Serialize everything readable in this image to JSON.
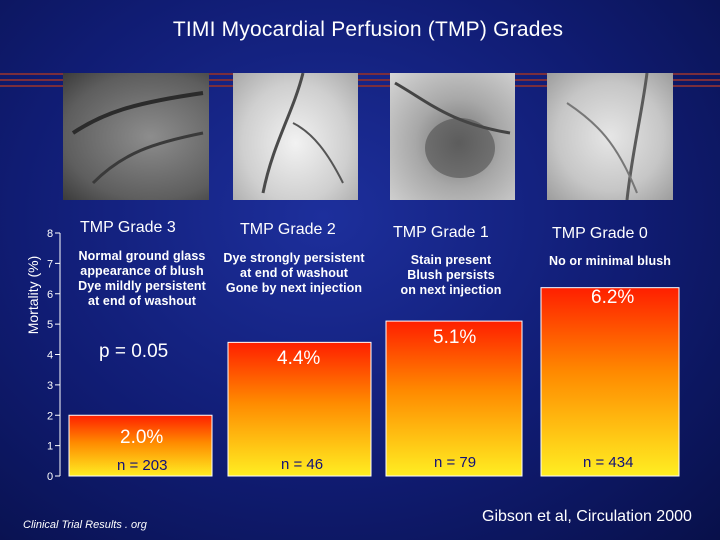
{
  "title": "TIMI Myocardial Perfusion (TMP) Grades",
  "footer_left": "Clinical Trial Results . org",
  "footer_right": "Gibson et al, Circulation 2000",
  "p_value_text": "p = 0.05",
  "grades": [
    {
      "label": "TMP Grade 3",
      "description": [
        "Normal ground glass",
        "appearance of blush",
        "Dye mildly persistent",
        "at end of washout"
      ],
      "value_label": "2.0%",
      "n_label": "n = 203"
    },
    {
      "label": "TMP Grade 2",
      "description": [
        "Dye strongly persistent",
        "at end of washout",
        "Gone by next injection"
      ],
      "value_label": "4.4%",
      "n_label": "n = 46"
    },
    {
      "label": "TMP Grade 1",
      "description": [
        "Stain present",
        "Blush persists",
        "on next injection"
      ],
      "value_label": "5.1%",
      "n_label": "n =  79"
    },
    {
      "label": "TMP Grade 0",
      "description": [
        "No or minimal blush"
      ],
      "value_label": "6.2%",
      "n_label": "n =  434"
    }
  ],
  "chart_data": {
    "type": "bar",
    "categories": [
      "TMP Grade 3",
      "TMP Grade 2",
      "TMP Grade 1",
      "TMP Grade 0"
    ],
    "values": [
      2.0,
      4.4,
      5.1,
      6.2
    ],
    "ylabel": "Mortality (%)",
    "ylim": [
      0,
      8
    ],
    "yticks": [
      "0",
      "1",
      "2",
      "3",
      "4",
      "5",
      "6",
      "7",
      "8"
    ],
    "colors": {
      "bar_top": "#ff1f00",
      "bar_mid": "#ff8a00",
      "bar_bottom": "#ffee22",
      "bar_border": "#ffffff"
    }
  }
}
